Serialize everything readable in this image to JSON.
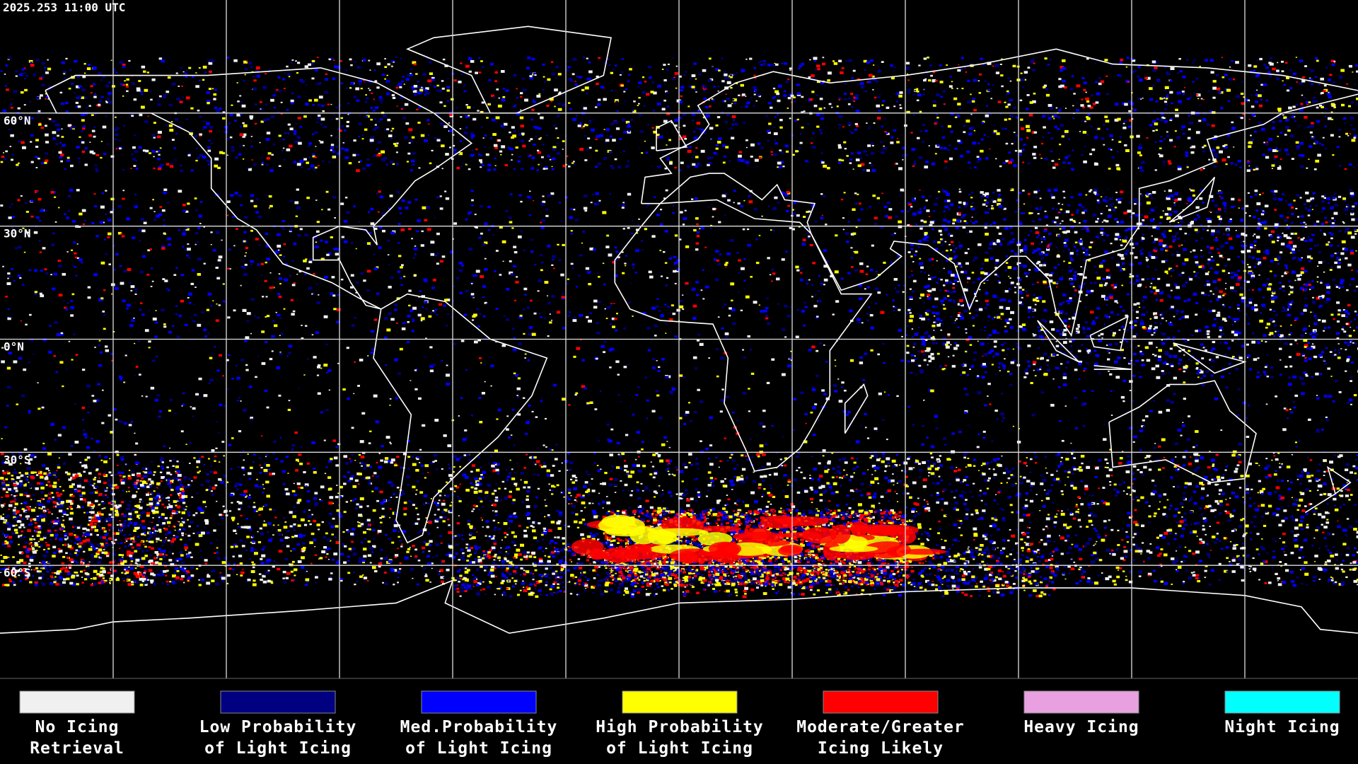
{
  "header": {
    "timestamp": "2025.253 11:00 UTC"
  },
  "map": {
    "lat_labels": [
      "60°N",
      "30°N",
      "0°N",
      "30°S",
      "60°S"
    ]
  },
  "legend": [
    {
      "label": [
        "No Icing",
        "Retrieval"
      ],
      "color": "#f0f0f0"
    },
    {
      "label": [
        "Low Probability",
        "of Light Icing"
      ],
      "color": "#000080"
    },
    {
      "label": [
        "Med.Probability",
        "of Light Icing"
      ],
      "color": "#0000ff"
    },
    {
      "label": [
        "High Probability",
        "of Light Icing"
      ],
      "color": "#ffff00"
    },
    {
      "label": [
        "Moderate/Greater",
        "Icing Likely"
      ],
      "color": "#ff0000"
    },
    {
      "label": [
        "Heavy Icing"
      ],
      "color": "#e8a0e0"
    },
    {
      "label": [
        "Night Icing"
      ],
      "color": "#00ffff"
    }
  ]
}
